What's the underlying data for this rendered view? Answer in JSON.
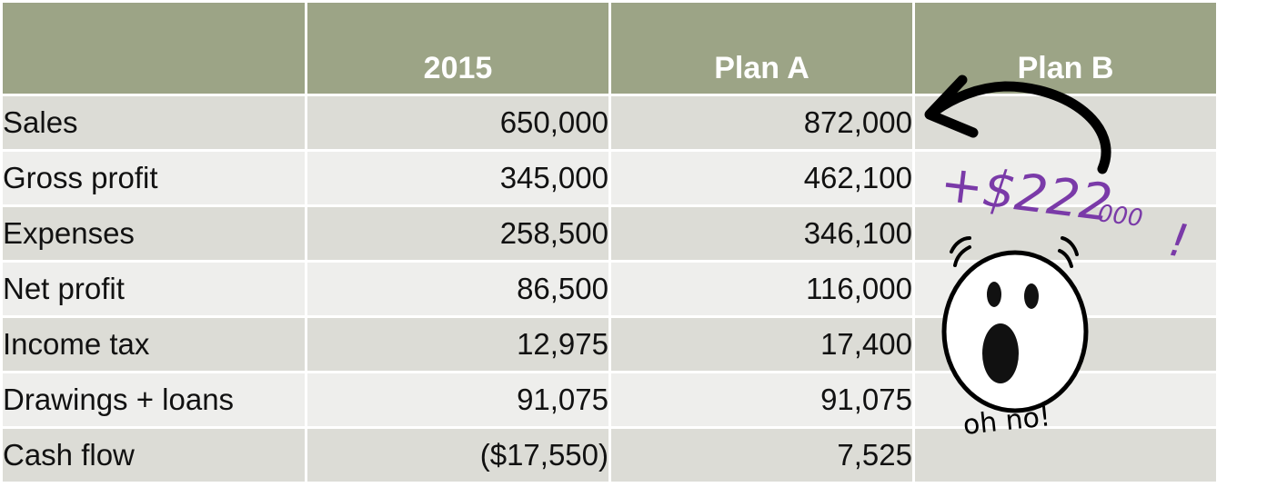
{
  "header": {
    "year": "2015",
    "plan_a": "Plan A",
    "plan_b": "Plan B"
  },
  "rows": [
    {
      "label": "Sales",
      "y2015": "650,000",
      "plan_a": "872,000",
      "plan_b": ""
    },
    {
      "label": "Gross profit",
      "y2015": "345,000",
      "plan_a": "462,100",
      "plan_b": ""
    },
    {
      "label": "Expenses",
      "y2015": "258,500",
      "plan_a": "346,100",
      "plan_b": ""
    },
    {
      "label": "Net profit",
      "y2015": "86,500",
      "plan_a": "116,000",
      "plan_b": ""
    },
    {
      "label": "Income tax",
      "y2015": "12,975",
      "plan_a": "17,400",
      "plan_b": ""
    },
    {
      "label": "Drawings + loans",
      "y2015": "91,075",
      "plan_a": "91,075",
      "plan_b": ""
    },
    {
      "label": "Cash flow",
      "y2015": "($17,550)",
      "plan_a": "7,525",
      "plan_b": ""
    }
  ],
  "annotations": {
    "increase_prefix": "+$222",
    "increase_suffix": "000",
    "exclaim": "!",
    "oh_no": "oh no!"
  },
  "colors": {
    "header_bg": "#9ca486",
    "row_dark": "#dcdcd6",
    "row_light": "#eeeeec",
    "negative": "#b01818",
    "handwriting": "#7a3aa8"
  },
  "icons": {
    "arrow": "curved-arrow-icon",
    "face": "shocked-face-icon"
  }
}
